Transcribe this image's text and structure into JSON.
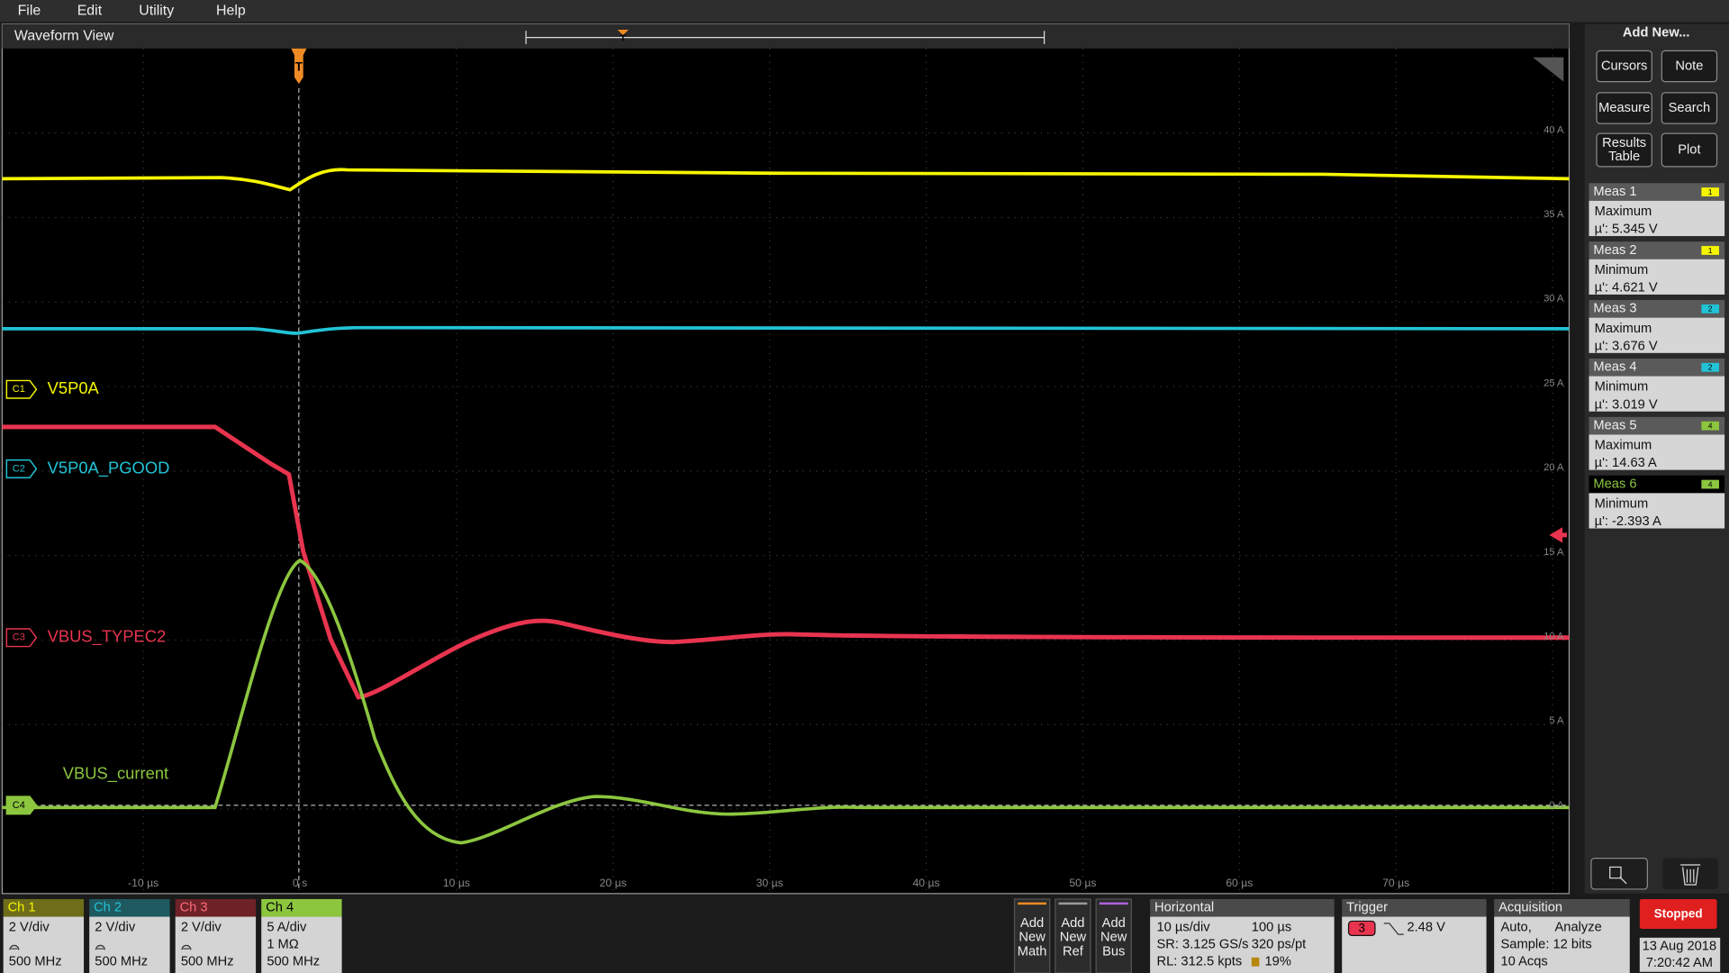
{
  "menu": [
    "File",
    "Edit",
    "Utility",
    "Help"
  ],
  "waveform_view": {
    "title": "Waveform View",
    "trigger_marker": "T",
    "channel_labels": [
      {
        "badge": "C1",
        "name": "V5P0A"
      },
      {
        "badge": "C2",
        "name": "V5P0A_PGOOD"
      },
      {
        "badge": "C3",
        "name": "VBUS_TYPEC2"
      },
      {
        "badge": "C4",
        "name": "VBUS_current"
      }
    ],
    "y_axis_labels": [
      "40 A",
      "35 A",
      "30 A",
      "25 A",
      "20 A",
      "15 A",
      "10 A",
      "5 A",
      "0 A"
    ],
    "x_axis_labels": [
      "-10 µs",
      "0 s",
      "10 µs",
      "20 µs",
      "30 µs",
      "40 µs",
      "50 µs",
      "60 µs",
      "70 µs"
    ]
  },
  "side_panel": {
    "title": "Add New...",
    "buttons": [
      [
        "Cursors"
      ],
      [
        "Note"
      ],
      [
        "Measure"
      ],
      [
        "Search"
      ],
      [
        "Results",
        "Table"
      ],
      [
        "Plot"
      ]
    ],
    "measurements": [
      {
        "name": "Meas 1",
        "source": "1",
        "statistic": "Maximum",
        "value": "µ': 5.345 V"
      },
      {
        "name": "Meas 2",
        "source": "1",
        "statistic": "Minimum",
        "value": "µ': 4.621 V"
      },
      {
        "name": "Meas 3",
        "source": "2",
        "statistic": "Maximum",
        "value": "µ': 3.676 V"
      },
      {
        "name": "Meas 4",
        "source": "2",
        "statistic": "Minimum",
        "value": "µ': 3.019 V"
      },
      {
        "name": "Meas 5",
        "source": "4",
        "statistic": "Maximum",
        "value": "µ': 14.63 A"
      },
      {
        "name": "Meas 6",
        "source": "4",
        "statistic": "Minimum",
        "value": "µ': -2.393 A"
      }
    ]
  },
  "status_bar": {
    "channels": [
      {
        "name": "Ch 1",
        "lines": [
          "2 V/div",
          "500 MHz"
        ]
      },
      {
        "name": "Ch 2",
        "lines": [
          "2 V/div",
          "500 MHz"
        ]
      },
      {
        "name": "Ch 3",
        "lines": [
          "2 V/div",
          "500 MHz"
        ]
      },
      {
        "name": "Ch 4",
        "lines": [
          "5 A/div",
          "1 MΩ",
          "500 MHz"
        ]
      }
    ],
    "add_buttons": [
      [
        "Add",
        "New",
        "Math"
      ],
      [
        "Add",
        "New",
        "Ref"
      ],
      [
        "Add",
        "New",
        "Bus"
      ]
    ],
    "horizontal": {
      "title": "Horizontal",
      "rows": [
        [
          "10 µs/div",
          "100 µs"
        ],
        [
          "SR: 3.125 GS/s",
          "320 ps/pt"
        ],
        [
          "RL: 312.5 kpts",
          "19%"
        ]
      ]
    },
    "trigger": {
      "title": "Trigger",
      "source": "3",
      "level": "2.48 V"
    },
    "acquisition": {
      "title": "Acquisition",
      "rows": [
        [
          "Auto,",
          "Analyze"
        ],
        [
          "Sample: 12 bits"
        ],
        [
          "10 Acqs"
        ]
      ]
    },
    "run_state": "Stopped",
    "date": "13 Aug 2018",
    "time": "7:20:42 AM"
  }
}
